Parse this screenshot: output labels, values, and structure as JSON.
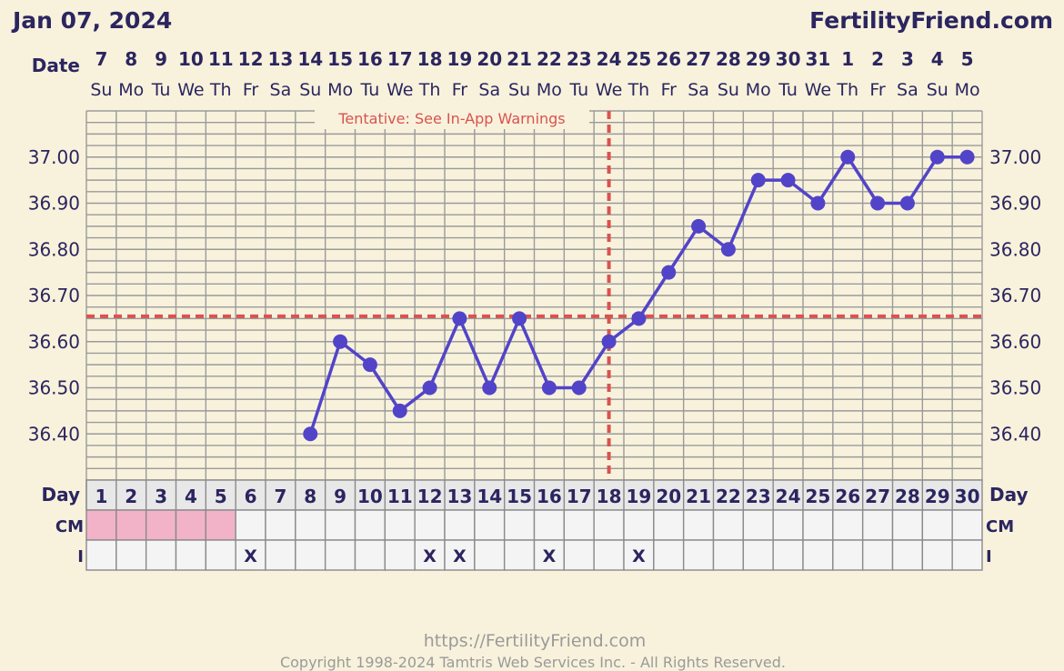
{
  "header": {
    "date": "Jan 07, 2024",
    "brand": "FertilityFriend.com"
  },
  "labels": {
    "date_row": "Date",
    "day_row": "Day",
    "cm_row": "CM",
    "i_row": "I"
  },
  "annotation": "Tentative: See In-App Warnings",
  "footer": {
    "url": "https://FertilityFriend.com",
    "copyright": "Copyright 1998-2024 Tamtris Web Services Inc. - All Rights Reserved."
  },
  "colors": {
    "background": "#f8f2dc",
    "line": "#5244c8",
    "coverline": "#d9534f",
    "cm_pink": "#f2b3c8",
    "text_dark": "#2b2560",
    "annotation_text": "#d9534f"
  },
  "chart_data": {
    "type": "line",
    "dates": [
      "7",
      "8",
      "9",
      "10",
      "11",
      "12",
      "13",
      "14",
      "15",
      "16",
      "17",
      "18",
      "19",
      "20",
      "21",
      "22",
      "23",
      "24",
      "25",
      "26",
      "27",
      "28",
      "29",
      "30",
      "31",
      "1",
      "2",
      "3",
      "4",
      "5"
    ],
    "weekdays": [
      "Su",
      "Mo",
      "Tu",
      "We",
      "Th",
      "Fr",
      "Sa",
      "Su",
      "Mo",
      "Tu",
      "We",
      "Th",
      "Fr",
      "Sa",
      "Su",
      "Mo",
      "Tu",
      "We",
      "Th",
      "Fr",
      "Sa",
      "Su",
      "Mo",
      "Tu",
      "We",
      "Th",
      "Fr",
      "Sa",
      "Su",
      "Mo"
    ],
    "cycle_days": [
      "1",
      "2",
      "3",
      "4",
      "5",
      "6",
      "7",
      "8",
      "9",
      "10",
      "11",
      "12",
      "13",
      "14",
      "15",
      "16",
      "17",
      "18",
      "19",
      "20",
      "21",
      "22",
      "23",
      "24",
      "25",
      "26",
      "27",
      "28",
      "29",
      "30"
    ],
    "temperatures": [
      null,
      null,
      null,
      null,
      null,
      null,
      null,
      36.4,
      36.6,
      36.55,
      36.45,
      36.5,
      36.65,
      36.5,
      36.65,
      36.5,
      36.5,
      36.6,
      36.65,
      36.75,
      36.85,
      36.8,
      36.95,
      36.95,
      36.9,
      37.0,
      36.9,
      36.9,
      37.0,
      37.0
    ],
    "y_ticks": [
      "37.00",
      "36.90",
      "36.80",
      "36.70",
      "36.60",
      "36.50",
      "36.40"
    ],
    "ylim": [
      36.3,
      37.1
    ],
    "coverline": 36.655,
    "ovulation_day": 18,
    "cm_pink_days": [
      1,
      2,
      3,
      4,
      5
    ],
    "intercourse_days": [
      6,
      12,
      13,
      16,
      19
    ],
    "intercourse_mark": "X",
    "grid": true
  }
}
